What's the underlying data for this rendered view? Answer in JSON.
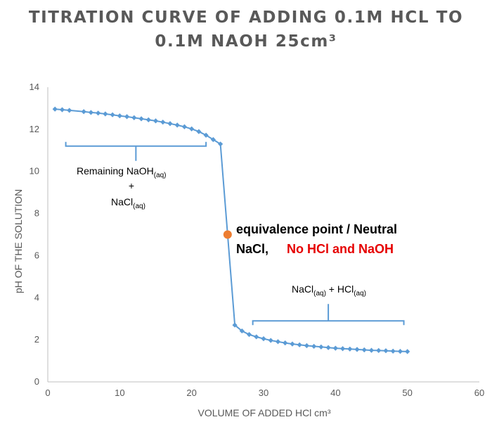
{
  "chart_data": {
    "type": "line",
    "title_line1": "TITRATION CURVE OF ADDING 0.1M HCL TO",
    "title_line2": "0.1M NAOH 25cm³",
    "xlabel": "VOLUME OF ADDED HCl cm³",
    "ylabel": "pH OF  THE SOLUTION",
    "xlim": [
      0,
      60
    ],
    "ylim": [
      0,
      14
    ],
    "x_ticks": [
      0,
      10,
      20,
      30,
      40,
      50,
      60
    ],
    "y_ticks": [
      0,
      2,
      4,
      6,
      8,
      10,
      12,
      14
    ],
    "series_color": "#5b9bd5",
    "marker": "diamond",
    "points": [
      [
        1,
        12.96
      ],
      [
        2,
        12.93
      ],
      [
        3,
        12.9
      ],
      [
        5,
        12.84
      ],
      [
        6,
        12.8
      ],
      [
        7,
        12.77
      ],
      [
        8,
        12.73
      ],
      [
        9,
        12.69
      ],
      [
        10,
        12.64
      ],
      [
        11,
        12.6
      ],
      [
        12,
        12.55
      ],
      [
        13,
        12.5
      ],
      [
        14,
        12.45
      ],
      [
        15,
        12.4
      ],
      [
        16,
        12.34
      ],
      [
        17,
        12.27
      ],
      [
        18,
        12.2
      ],
      [
        19,
        12.12
      ],
      [
        20,
        12.02
      ],
      [
        21,
        11.89
      ],
      [
        22,
        11.72
      ],
      [
        23,
        11.51
      ],
      [
        24,
        11.3
      ],
      [
        26,
        2.7
      ],
      [
        27,
        2.42
      ],
      [
        28,
        2.25
      ],
      [
        29,
        2.14
      ],
      [
        30,
        2.05
      ],
      [
        31,
        1.97
      ],
      [
        32,
        1.91
      ],
      [
        33,
        1.85
      ],
      [
        34,
        1.8
      ],
      [
        35,
        1.76
      ],
      [
        36,
        1.72
      ],
      [
        37,
        1.69
      ],
      [
        38,
        1.66
      ],
      [
        39,
        1.63
      ],
      [
        40,
        1.6
      ],
      [
        41,
        1.58
      ],
      [
        42,
        1.56
      ],
      [
        43,
        1.54
      ],
      [
        44,
        1.52
      ],
      [
        45,
        1.5
      ],
      [
        46,
        1.49
      ],
      [
        47,
        1.48
      ],
      [
        48,
        1.46
      ],
      [
        49,
        1.45
      ],
      [
        50,
        1.44
      ]
    ],
    "equivalence_point": {
      "x": 25,
      "y": 7.0,
      "color": "#ed7d31"
    },
    "bracket_color": "#5b9bd5",
    "bracket_upper": {
      "x_start": 2.5,
      "x_end": 22,
      "y": 11.2,
      "tip_y": 10.5
    },
    "bracket_lower": {
      "x_start": 28.5,
      "x_end": 49.5,
      "y": 2.9,
      "tip_y": 3.7
    },
    "annotations": {
      "remaining_main": "Remaining NaOH",
      "remaining_sub": "(aq)",
      "plus": "+",
      "nacl_main": "NaCl",
      "nacl_sub": "(aq)",
      "acid_nacl_main": "NaCl",
      "acid_nacl_sub": "(aq)",
      "acid_plus": " + HCl",
      "acid_hcl_sub": "(aq)",
      "equiv_line1": "equivalence point /   Neutral",
      "equiv_line2_black": "NaCl,",
      "equiv_line2_red": "No HCl and NaOH"
    }
  }
}
